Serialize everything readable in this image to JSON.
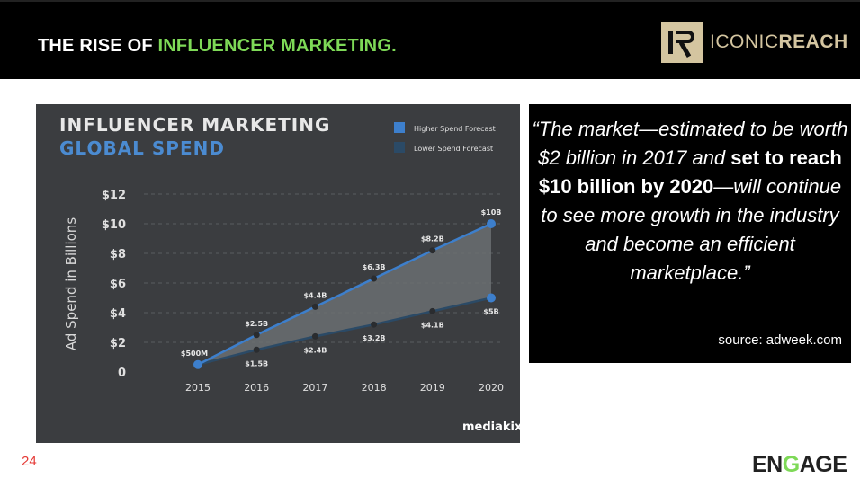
{
  "slide": {
    "title_prefix": "THE RISE OF ",
    "title_accent": "INFLUENCER MARKETING.",
    "logo_text_light": "ICONIC",
    "logo_text_bold": "REACH",
    "page_number": "24",
    "footer_brand_pre": "EN",
    "footer_brand_g": "G",
    "footer_brand_post": "AGE",
    "accent_color": "#7ed957"
  },
  "quote": {
    "line1": "“The market—estimated to be worth $2 billion in 2017 and ",
    "strong": "set to reach $10 billion by 2020",
    "line2": "—will continue to see more growth in the industry and become an efficient marketplace.”",
    "source": "source: adweek.com"
  },
  "chart_data": {
    "type": "line",
    "title": "INFLUENCER MARKETING",
    "subtitle": "GLOBAL SPEND",
    "ylabel": "Ad Spend in Billions",
    "x": [
      "2015",
      "2016",
      "2017",
      "2018",
      "2019",
      "2020"
    ],
    "yticks": [
      "0",
      "$2",
      "$4",
      "$6",
      "$8",
      "$10",
      "$12"
    ],
    "ylim": [
      0,
      12
    ],
    "series": [
      {
        "name": "Higher Spend Forecast",
        "color": "#3d7fcc",
        "values": [
          0.5,
          2.5,
          4.4,
          6.3,
          8.2,
          10
        ],
        "labels": [
          "$500M",
          "$2.5B",
          "$4.4B",
          "$6.3B",
          "$8.2B",
          "$10B"
        ]
      },
      {
        "name": "Lower Spend Forecast",
        "color": "#2b4a66",
        "values": [
          0.5,
          1.5,
          2.4,
          3.2,
          4.1,
          5
        ],
        "labels": [
          "",
          "$1.5B",
          "$2.4B",
          "$3.2B",
          "$4.1B",
          "$5B"
        ]
      }
    ],
    "legend_position": "top-right",
    "grid": true,
    "watermark": "mediakix"
  }
}
